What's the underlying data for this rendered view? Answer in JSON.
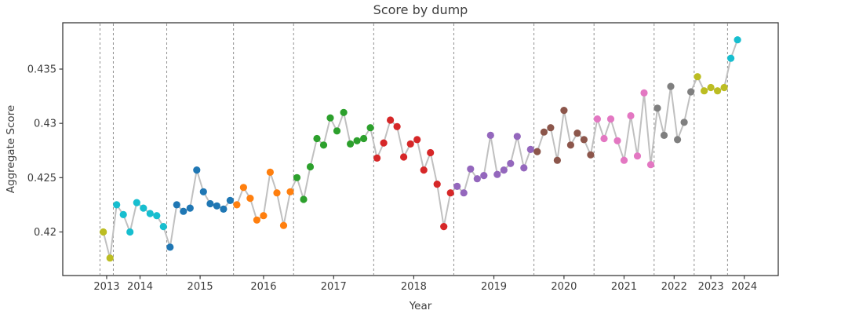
{
  "title": "Score by dump",
  "chart_data": {
    "type": "line",
    "title": "Score by dump",
    "xlabel": "Year",
    "ylabel": "Aggregate Score",
    "ylim": [
      0.416,
      0.4394
    ],
    "y_ticks": [
      0.42,
      0.425,
      0.43,
      0.435
    ],
    "y_tick_labels": [
      "0.42",
      "0.425",
      "0.43",
      "0.435"
    ],
    "x_tick_labels": [
      "2013",
      "2014",
      "2015",
      "2016",
      "2017",
      "2018",
      "2019",
      "2020",
      "2021",
      "2022",
      "2023",
      "2024"
    ],
    "legend": "none",
    "grid": "vertical dashed lines at year-group boundaries",
    "line_color": "#c0c0c0",
    "grid_color": "#909090",
    "axis_color": "#3a3a3a",
    "text_color": "#3d3d3d",
    "marker_diameter_px": 9.2,
    "groups": [
      {
        "year": "2013",
        "color": "#bcbd22",
        "tick_index": 0.5,
        "values": [
          0.42,
          0.4176
        ]
      },
      {
        "year": "2014",
        "color": "#17becf",
        "tick_index": 5.5,
        "values": [
          0.4225,
          0.4216,
          0.42,
          0.4227,
          0.4222,
          0.4217,
          0.4215,
          0.4205
        ]
      },
      {
        "year": "2015",
        "color": "#1f77b4",
        "tick_index": 14.5,
        "values": [
          0.4186,
          0.4225,
          0.4219,
          0.4222,
          0.4257,
          0.4237,
          0.4226,
          0.4224,
          0.4221,
          0.4229
        ]
      },
      {
        "year": "2016",
        "color": "#ff7f0e",
        "tick_index": 24,
        "values": [
          0.4225,
          0.4241,
          0.4231,
          0.4211,
          0.4215,
          0.4255,
          0.4236,
          0.4206,
          0.4237
        ]
      },
      {
        "year": "2017",
        "color": "#2ca02c",
        "tick_index": 34.5,
        "values": [
          0.425,
          0.423,
          0.426,
          0.4286,
          0.428,
          0.4305,
          0.4293,
          0.431,
          0.4281,
          0.4284,
          0.4286,
          0.4296
        ]
      },
      {
        "year": "2018",
        "color": "#d62728",
        "tick_index": 46.5,
        "values": [
          0.4268,
          0.4282,
          0.4303,
          0.4297,
          0.4269,
          0.4281,
          0.4285,
          0.4257,
          0.4273,
          0.4244,
          0.4205,
          0.4236
        ]
      },
      {
        "year": "2019",
        "color": "#9467bd",
        "tick_index": 58.5,
        "values": [
          0.4242,
          0.4236,
          0.4258,
          0.4249,
          0.4252,
          0.4289,
          0.4253,
          0.4257,
          0.4263,
          0.4288,
          0.4259,
          0.4276
        ]
      },
      {
        "year": "2020",
        "color": "#8c564b",
        "tick_index": 69,
        "values": [
          0.4274,
          0.4292,
          0.4296,
          0.4266,
          0.4312,
          0.428,
          0.4291,
          0.4285,
          0.4271
        ]
      },
      {
        "year": "2021",
        "color": "#e377c2",
        "tick_index": 78,
        "values": [
          0.4304,
          0.4286,
          0.4304,
          0.4284,
          0.4266,
          0.4307,
          0.427,
          0.4328,
          0.4262
        ]
      },
      {
        "year": "2022",
        "color": "#7f7f7f",
        "tick_index": 85.5,
        "values": [
          0.4314,
          0.4289,
          0.4334,
          0.4285,
          0.4301,
          0.4329
        ]
      },
      {
        "year": "2023",
        "color": "#bcbd22",
        "tick_index": 91,
        "values": [
          0.4343,
          0.433,
          0.4333,
          0.433,
          0.4333
        ]
      },
      {
        "year": "2024",
        "color": "#17becf",
        "tick_index": 96,
        "values": [
          0.436,
          0.4377
        ]
      }
    ]
  }
}
